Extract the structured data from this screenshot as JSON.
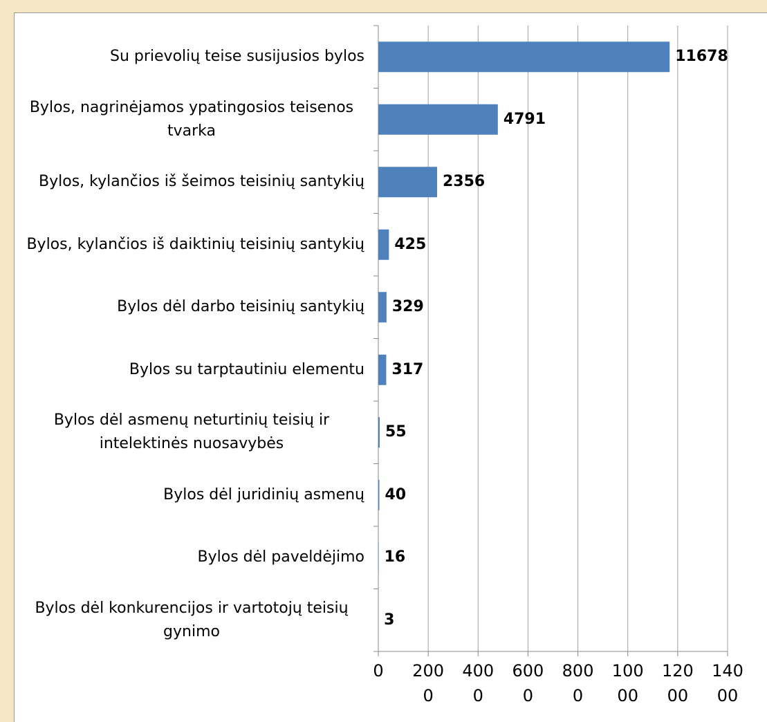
{
  "chart_data": {
    "type": "bar",
    "orientation": "horizontal",
    "categories": [
      "Su prievolių teise susijusios bylos",
      "Bylos, nagrinėjamos ypatingosios teisenos tvarka",
      "Bylos, kylančios iš šeimos teisinių santykių",
      "Bylos, kylančios iš daiktinių teisinių santykių",
      "Bylos dėl darbo teisinių santykių",
      "Bylos su tarptautiniu elementu",
      "Bylos dėl asmenų neturtinių teisių ir intelektinės nuosavybės",
      "Bylos dėl juridinių asmenų",
      "Bylos dėl paveldėjimo",
      "Bylos dėl konkurencijos ir vartotojų teisių gynimo"
    ],
    "values": [
      11678,
      4791,
      2356,
      425,
      329,
      317,
      55,
      40,
      16,
      3
    ],
    "color": "#4f81bd",
    "xlim": [
      0,
      14000
    ],
    "xticks": [
      0,
      2000,
      4000,
      6000,
      8000,
      10000,
      12000,
      14000
    ],
    "grid": true
  }
}
